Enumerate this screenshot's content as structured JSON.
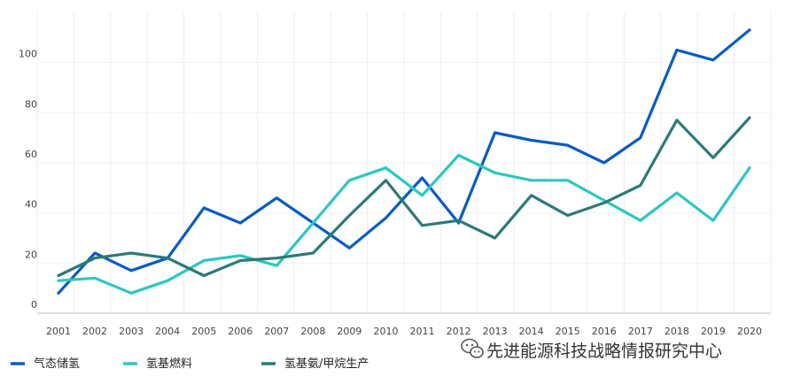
{
  "chart_data": {
    "type": "line",
    "title": "",
    "xlabel": "",
    "ylabel": "",
    "x": [
      "2001",
      "2002",
      "2003",
      "2004",
      "2005",
      "2006",
      "2007",
      "2008",
      "2009",
      "2010",
      "2011",
      "2012",
      "2013",
      "2014",
      "2015",
      "2016",
      "2017",
      "2018",
      "2019",
      "2020"
    ],
    "ylim": [
      0,
      120
    ],
    "yticks": [
      0,
      20,
      40,
      60,
      80,
      100
    ],
    "grid": "vertical",
    "legend_position": "bottom",
    "series": [
      {
        "name": "气态储氢",
        "color": "#0a5bc4",
        "values": [
          8,
          24,
          17,
          22,
          42,
          36,
          46,
          36,
          26,
          38,
          54,
          36,
          72,
          69,
          67,
          60,
          70,
          105,
          101,
          113
        ]
      },
      {
        "name": "氢基燃料",
        "color": "#2ec7c0",
        "values": [
          13,
          14,
          8,
          13,
          21,
          23,
          19,
          36,
          53,
          58,
          47,
          63,
          56,
          53,
          53,
          45,
          37,
          48,
          37,
          58
        ]
      },
      {
        "name": "氢基氨/甲烷生产",
        "color": "#2c7a78",
        "values": [
          15,
          22,
          24,
          22,
          15,
          21,
          22,
          24,
          39,
          53,
          35,
          37,
          30,
          47,
          39,
          44,
          51,
          77,
          62,
          78
        ]
      }
    ]
  },
  "watermark": {
    "text": "先进能源科技战略情报研究中心",
    "icon": "wechat-icon"
  }
}
